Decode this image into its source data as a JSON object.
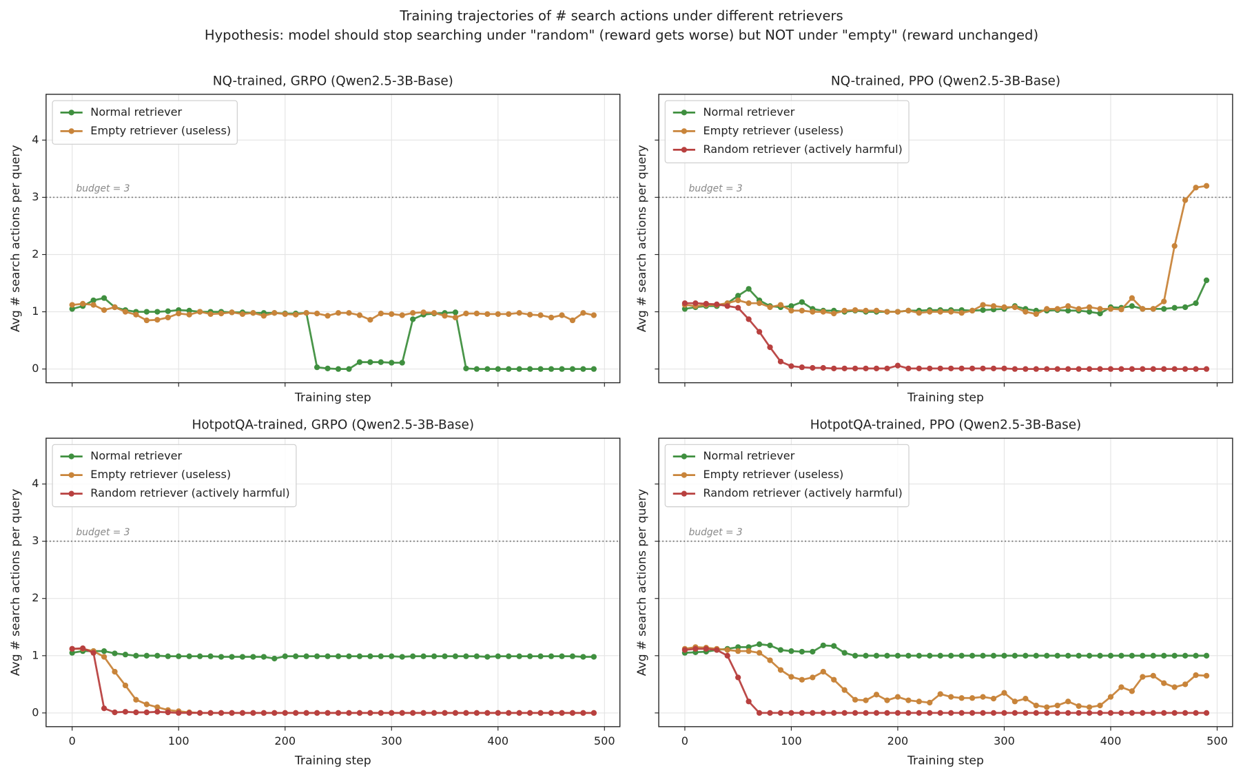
{
  "title": "Training trajectories of # search actions under different retrievers",
  "subtitle": "Hypothesis: model should stop searching under \"random\" (reward gets worse) but NOT under \"empty\" (reward unchanged)",
  "chart_data": [
    {
      "type": "line",
      "title": "NQ-trained, GRPO (Qwen2.5-3B-Base)",
      "xlabel": "Training step",
      "ylabel": "Avg # search actions per query",
      "x": [
        0,
        10,
        20,
        30,
        40,
        50,
        60,
        70,
        80,
        90,
        100,
        110,
        120,
        130,
        140,
        150,
        160,
        170,
        180,
        190,
        200,
        210,
        220,
        230,
        240,
        250,
        260,
        270,
        280,
        290,
        300,
        310,
        320,
        330,
        340,
        350,
        360,
        370,
        380,
        390,
        400,
        410,
        420,
        430,
        440,
        450,
        460,
        470,
        480,
        490
      ],
      "series": [
        {
          "name": "Normal retriever",
          "color": "#3f8f3f",
          "values": [
            1.05,
            1.1,
            1.2,
            1.24,
            1.08,
            1.03,
            1.0,
            1.0,
            1.0,
            1.01,
            1.03,
            1.02,
            1.0,
            1.0,
            1.0,
            0.99,
            0.99,
            0.98,
            0.98,
            0.98,
            0.97,
            0.97,
            0.98,
            0.03,
            0.01,
            0.0,
            0.0,
            0.12,
            0.12,
            0.12,
            0.11,
            0.11,
            0.87,
            0.95,
            0.97,
            0.98,
            0.99,
            0.01,
            0,
            0,
            0,
            0,
            0,
            0,
            0,
            0,
            0,
            0,
            0,
            0
          ]
        },
        {
          "name": "Empty retriever (useless)",
          "color": "#c8843a",
          "values": [
            1.12,
            1.14,
            1.12,
            1.03,
            1.08,
            1.0,
            0.95,
            0.85,
            0.86,
            0.9,
            0.97,
            0.95,
            1.0,
            0.96,
            0.97,
            0.99,
            0.96,
            0.98,
            0.93,
            0.98,
            0.96,
            0.95,
            0.98,
            0.97,
            0.93,
            0.98,
            0.98,
            0.94,
            0.86,
            0.97,
            0.96,
            0.94,
            0.98,
            0.99,
            0.98,
            0.93,
            0.9,
            0.97,
            0.97,
            0.96,
            0.96,
            0.96,
            0.98,
            0.95,
            0.94,
            0.9,
            0.94,
            0.85,
            0.98,
            0.94
          ]
        }
      ],
      "xlim": [
        -24.5,
        514.5
      ],
      "ylim": [
        -0.24,
        4.8
      ],
      "xticks": [
        0,
        100,
        200,
        300,
        400,
        500
      ],
      "yticks": [
        0,
        1,
        2,
        3,
        4
      ],
      "hline": {
        "value": 3,
        "label": "budget = 3"
      },
      "grid": true,
      "legend": "upper left"
    },
    {
      "type": "line",
      "title": "NQ-trained, PPO (Qwen2.5-3B-Base)",
      "xlabel": "Training step",
      "ylabel": "Avg # search actions per query",
      "x": [
        0,
        10,
        20,
        30,
        40,
        50,
        60,
        70,
        80,
        90,
        100,
        110,
        120,
        130,
        140,
        150,
        160,
        170,
        180,
        190,
        200,
        210,
        220,
        230,
        240,
        250,
        260,
        270,
        280,
        290,
        300,
        310,
        320,
        330,
        340,
        350,
        360,
        370,
        380,
        390,
        400,
        410,
        420,
        430,
        440,
        450,
        460,
        470,
        480,
        490
      ],
      "series": [
        {
          "name": "Normal retriever",
          "color": "#3f8f3f",
          "values": [
            1.05,
            1.08,
            1.1,
            1.1,
            1.15,
            1.28,
            1.4,
            1.2,
            1.1,
            1.08,
            1.1,
            1.17,
            1.05,
            1.02,
            1.02,
            1.0,
            1.02,
            1.0,
            1.0,
            1.0,
            1.0,
            1.02,
            1.02,
            1.03,
            1.03,
            1.03,
            1.03,
            1.02,
            1.03,
            1.04,
            1.05,
            1.1,
            1.05,
            1.02,
            1.02,
            1.03,
            1.02,
            1.02,
            1.0,
            0.97,
            1.08,
            1.07,
            1.1,
            1.05,
            1.05,
            1.05,
            1.07,
            1.08,
            1.15,
            1.55
          ]
        },
        {
          "name": "Empty retriever (useless)",
          "color": "#c8843a",
          "values": [
            1.12,
            1.1,
            1.12,
            1.12,
            1.15,
            1.2,
            1.15,
            1.15,
            1.08,
            1.12,
            1.02,
            1.02,
            1.0,
            1.0,
            0.97,
            1.02,
            1.03,
            1.02,
            1.02,
            1.0,
            1.0,
            1.02,
            0.98,
            1.0,
            1.0,
            1.0,
            0.98,
            1.02,
            1.12,
            1.1,
            1.08,
            1.08,
            1.0,
            0.96,
            1.05,
            1.05,
            1.1,
            1.05,
            1.08,
            1.05,
            1.05,
            1.04,
            1.24,
            1.05,
            1.05,
            1.18,
            2.15,
            2.95,
            3.17,
            3.2
          ]
        },
        {
          "name": "Random retriever (actively harmful)",
          "color": "#b8403f",
          "values": [
            1.15,
            1.15,
            1.14,
            1.13,
            1.1,
            1.07,
            0.87,
            0.65,
            0.38,
            0.13,
            0.05,
            0.03,
            0.02,
            0.02,
            0.01,
            0.01,
            0.01,
            0.01,
            0.01,
            0.01,
            0.06,
            0.01,
            0.01,
            0.01,
            0.01,
            0.01,
            0.01,
            0.01,
            0.01,
            0.01,
            0.01,
            0,
            0,
            0,
            0,
            0,
            0,
            0,
            0,
            0,
            0,
            0,
            0,
            0,
            0,
            0,
            0,
            0,
            0,
            0
          ]
        }
      ],
      "xlim": [
        -24.5,
        514.5
      ],
      "ylim": [
        -0.24,
        4.8
      ],
      "xticks": [
        0,
        100,
        200,
        300,
        400,
        500
      ],
      "yticks": [
        0,
        1,
        2,
        3,
        4
      ],
      "hline": {
        "value": 3,
        "label": "budget = 3"
      },
      "grid": true,
      "legend": "upper left"
    },
    {
      "type": "line",
      "title": "HotpotQA-trained, GRPO (Qwen2.5-3B-Base)",
      "xlabel": "Training step",
      "ylabel": "Avg # search actions per query",
      "x": [
        0,
        10,
        20,
        30,
        40,
        50,
        60,
        70,
        80,
        90,
        100,
        110,
        120,
        130,
        140,
        150,
        160,
        170,
        180,
        190,
        200,
        210,
        220,
        230,
        240,
        250,
        260,
        270,
        280,
        290,
        300,
        310,
        320,
        330,
        340,
        350,
        360,
        370,
        380,
        390,
        400,
        410,
        420,
        430,
        440,
        450,
        460,
        470,
        480,
        490
      ],
      "series": [
        {
          "name": "Normal retriever",
          "color": "#3f8f3f",
          "values": [
            1.05,
            1.08,
            1.08,
            1.08,
            1.04,
            1.02,
            1.0,
            1.0,
            1.0,
            0.99,
            0.99,
            0.99,
            0.99,
            0.99,
            0.98,
            0.98,
            0.98,
            0.98,
            0.98,
            0.95,
            0.99,
            0.99,
            0.99,
            0.99,
            0.99,
            0.99,
            0.99,
            0.99,
            0.99,
            0.99,
            0.99,
            0.98,
            0.99,
            0.99,
            0.99,
            0.99,
            0.99,
            0.99,
            0.99,
            0.98,
            0.99,
            0.99,
            0.99,
            0.99,
            0.99,
            0.99,
            0.99,
            0.99,
            0.98,
            0.98
          ]
        },
        {
          "name": "Empty retriever (useless)",
          "color": "#c8843a",
          "values": [
            1.12,
            1.12,
            1.08,
            0.98,
            0.72,
            0.48,
            0.23,
            0.15,
            0.1,
            0.05,
            0.03,
            0.01,
            0,
            0,
            0,
            0,
            0,
            0,
            0,
            0,
            0,
            0,
            0,
            0,
            0,
            0,
            0,
            0,
            0,
            0,
            0,
            0,
            0,
            0,
            0,
            0,
            0,
            0,
            0,
            0,
            0,
            0,
            0,
            0,
            0,
            0,
            0,
            0,
            0,
            0
          ]
        },
        {
          "name": "Random retriever (actively harmful)",
          "color": "#b8403f",
          "values": [
            1.12,
            1.13,
            1.05,
            0.08,
            0.01,
            0.02,
            0.01,
            0.01,
            0.02,
            0.01,
            0,
            0,
            0,
            0,
            0,
            0,
            0,
            0,
            0,
            0,
            0,
            0,
            0,
            0,
            0,
            0,
            0,
            0,
            0,
            0,
            0,
            0,
            0,
            0,
            0,
            0,
            0,
            0,
            0,
            0,
            0,
            0,
            0,
            0,
            0,
            0,
            0,
            0,
            0,
            0
          ]
        }
      ],
      "xlim": [
        -24.5,
        514.5
      ],
      "ylim": [
        -0.24,
        4.8
      ],
      "xticks": [
        0,
        100,
        200,
        300,
        400,
        500
      ],
      "yticks": [
        0,
        1,
        2,
        3,
        4
      ],
      "hline": {
        "value": 3,
        "label": "budget = 3"
      },
      "grid": true,
      "legend": "upper left"
    },
    {
      "type": "line",
      "title": "HotpotQA-trained, PPO (Qwen2.5-3B-Base)",
      "xlabel": "Training step",
      "ylabel": "Avg # search actions per query",
      "x": [
        0,
        10,
        20,
        30,
        40,
        50,
        60,
        70,
        80,
        90,
        100,
        110,
        120,
        130,
        140,
        150,
        160,
        170,
        180,
        190,
        200,
        210,
        220,
        230,
        240,
        250,
        260,
        270,
        280,
        290,
        300,
        310,
        320,
        330,
        340,
        350,
        360,
        370,
        380,
        390,
        400,
        410,
        420,
        430,
        440,
        450,
        460,
        470,
        480,
        490
      ],
      "series": [
        {
          "name": "Normal retriever",
          "color": "#3f8f3f",
          "values": [
            1.05,
            1.06,
            1.07,
            1.1,
            1.12,
            1.15,
            1.15,
            1.2,
            1.18,
            1.1,
            1.08,
            1.07,
            1.07,
            1.18,
            1.17,
            1.05,
            1.0,
            1.0,
            1.0,
            1.0,
            1.0,
            1.0,
            1.0,
            1.0,
            1.0,
            1.0,
            1.0,
            1.0,
            1.0,
            1.0,
            1.0,
            1.0,
            1.0,
            1.0,
            1.0,
            1.0,
            1.0,
            1.0,
            1.0,
            1.0,
            1.0,
            1.0,
            1.0,
            1.0,
            1.0,
            1.0,
            1.0,
            1.0,
            1.0,
            1.0
          ]
        },
        {
          "name": "Empty retriever (useless)",
          "color": "#c8843a",
          "values": [
            1.12,
            1.15,
            1.14,
            1.12,
            1.1,
            1.08,
            1.08,
            1.05,
            0.92,
            0.75,
            0.63,
            0.58,
            0.62,
            0.72,
            0.58,
            0.4,
            0.23,
            0.22,
            0.32,
            0.22,
            0.28,
            0.22,
            0.2,
            0.18,
            0.33,
            0.28,
            0.26,
            0.26,
            0.28,
            0.25,
            0.35,
            0.2,
            0.25,
            0.13,
            0.1,
            0.13,
            0.2,
            0.12,
            0.1,
            0.13,
            0.28,
            0.45,
            0.38,
            0.63,
            0.65,
            0.52,
            0.45,
            0.5,
            0.66,
            0.65
          ]
        },
        {
          "name": "Random retriever (actively harmful)",
          "color": "#b8403f",
          "values": [
            1.1,
            1.12,
            1.12,
            1.1,
            1.0,
            0.62,
            0.2,
            0,
            0,
            0,
            0,
            0,
            0,
            0,
            0,
            0,
            0,
            0,
            0,
            0,
            0,
            0,
            0,
            0,
            0,
            0,
            0,
            0,
            0,
            0,
            0,
            0,
            0,
            0,
            0,
            0,
            0,
            0,
            0,
            0,
            0,
            0,
            0,
            0,
            0,
            0,
            0,
            0,
            0,
            0
          ]
        }
      ],
      "xlim": [
        -24.5,
        514.5
      ],
      "ylim": [
        -0.24,
        4.8
      ],
      "xticks": [
        0,
        100,
        200,
        300,
        400,
        500
      ],
      "yticks": [
        0,
        1,
        2,
        3,
        4
      ],
      "hline": {
        "value": 3,
        "label": "budget = 3"
      },
      "grid": true,
      "legend": "upper left"
    }
  ]
}
